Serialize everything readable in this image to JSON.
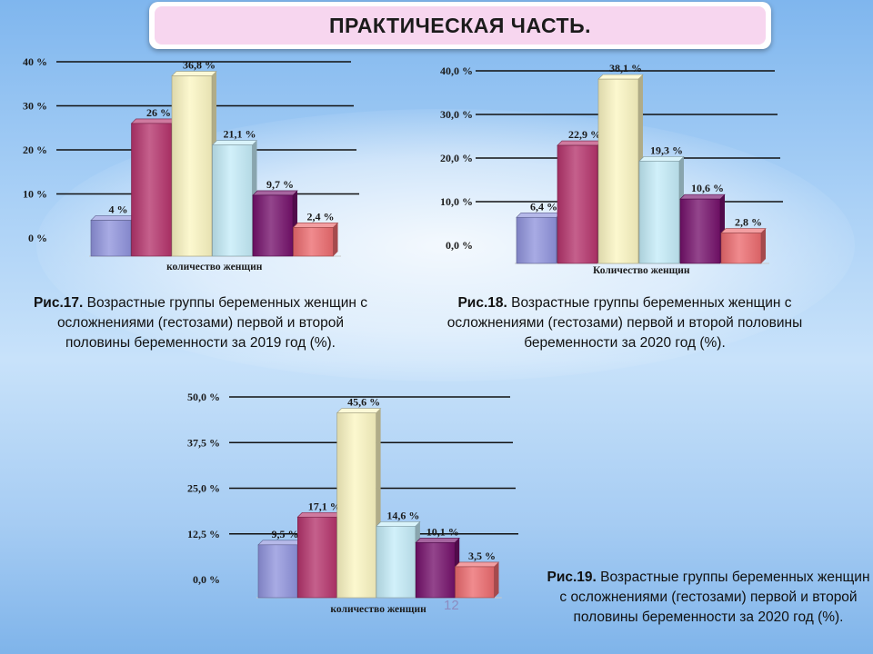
{
  "page": {
    "title": "ПРАКТИЧЕСКАЯ ЧАСТЬ.",
    "page_number": "12"
  },
  "captions": [
    {
      "label": "Рис.17.",
      "text": "Возрастные группы беременных женщин с осложнениями (гестозами) первой и второй половины беременности за 2019 год (%)."
    },
    {
      "label": "Рис.18.",
      "text": "Возрастные группы беременных женщин с осложнениями (гестозами) первой и второй половины беременности за 2020 год (%)."
    },
    {
      "label": "Рис.19.",
      "text": "Возрастные группы беременных женщин с осложнениями (гестозами) первой и второй половины беременности за 2020 год (%)."
    }
  ],
  "colors": [
    "#8f93dd",
    "#b5336c",
    "#fbf6c2",
    "#c4ecf8",
    "#74106b",
    "#ec6a6e"
  ],
  "chart_data": [
    {
      "type": "bar",
      "values": [
        4,
        26,
        36.8,
        21.1,
        9.7,
        2.4
      ],
      "value_labels": [
        "4 %",
        "26 %",
        "36,8 %",
        "21,1 %",
        "9,7 %",
        "2,4 %"
      ],
      "y_ticks": [
        "0 %",
        "10 %",
        "20 %",
        "30 %",
        "40 %"
      ],
      "y_tick_values": [
        0,
        10,
        20,
        30,
        40
      ],
      "ylim": [
        0,
        40
      ],
      "xlabel": "количество женщин"
    },
    {
      "type": "bar",
      "values": [
        6.4,
        22.9,
        38.1,
        19.3,
        10.6,
        2.8
      ],
      "value_labels": [
        "6,4 %",
        "22,9 %",
        "38,1 %",
        "19,3 %",
        "10,6 %",
        "2,8 %"
      ],
      "y_ticks": [
        "0,0 %",
        "10,0 %",
        "20,0 %",
        "30,0 %",
        "40,0 %"
      ],
      "y_tick_values": [
        0,
        10,
        20,
        30,
        40
      ],
      "ylim": [
        0,
        40
      ],
      "xlabel": "Количество женщин"
    },
    {
      "type": "bar",
      "values": [
        9.5,
        17.1,
        45.6,
        14.6,
        10.1,
        3.5
      ],
      "value_labels": [
        "9,5 %",
        "17,1 %",
        "45,6 %",
        "14,6 %",
        "10,1 %",
        "3,5 %"
      ],
      "y_ticks": [
        "0,0 %",
        "12,5 %",
        "25,0 %",
        "37,5 %",
        "50,0 %"
      ],
      "y_tick_values": [
        0,
        12.5,
        25,
        37.5,
        50
      ],
      "ylim": [
        0,
        50
      ],
      "xlabel": "количество женщин"
    }
  ]
}
